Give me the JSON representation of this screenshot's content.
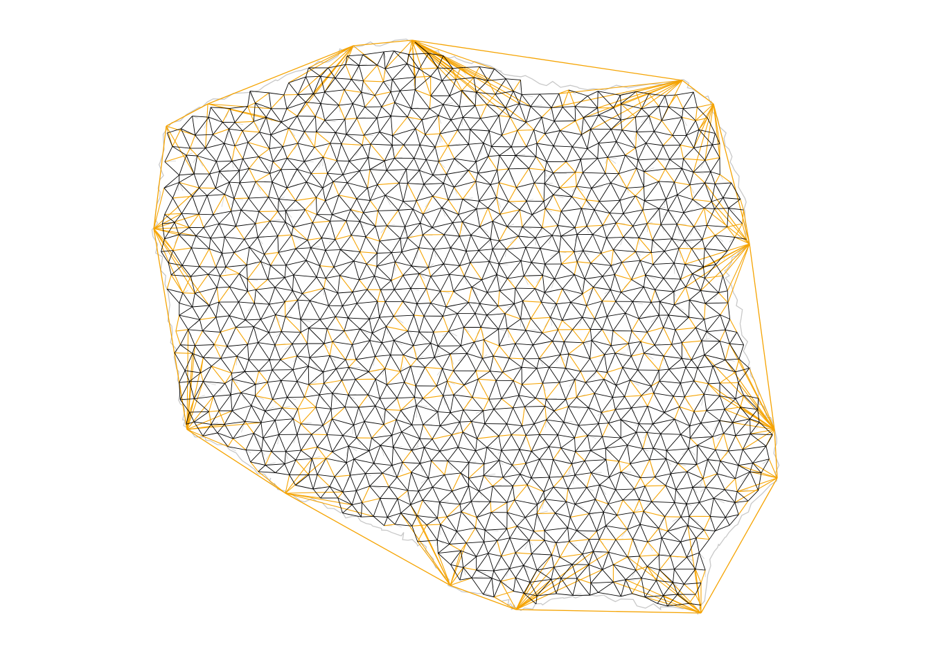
{
  "map": {
    "colors": {
      "background": "#ffffff",
      "boundary": "#c8c8c8",
      "grey_edges": "#cfcfcf",
      "orange_edges": "#f5a300",
      "black_edges": "#000000"
    },
    "layers": [
      {
        "name": "region-boundaries",
        "color_key": "boundary"
      },
      {
        "name": "unused-triangulation-edges",
        "color_key": "orange_edges"
      },
      {
        "name": "selected-triangulation-edges",
        "color_key": "black_edges"
      }
    ],
    "icon": "triangulated-mesh-icon"
  }
}
